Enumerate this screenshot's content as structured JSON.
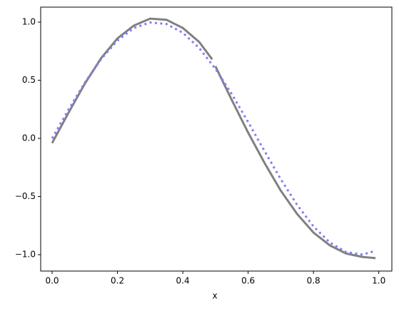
{
  "chart_data": {
    "type": "line",
    "x_label": "x",
    "xlim": [
      -0.035,
      1.04
    ],
    "ylim": [
      -1.141,
      1.129
    ],
    "xticks": [
      {
        "value": 0,
        "label": "0.0"
      },
      0.2,
      0.4,
      0.6,
      0.8,
      {
        "value": 1,
        "label": "1.0"
      }
    ],
    "yticks": [
      {
        "value": -1,
        "label": "−1.0"
      },
      {
        "value": -0.5,
        "label": "−0.5"
      },
      {
        "value": 0,
        "label": "0.0"
      },
      0.5,
      {
        "value": 1,
        "label": "1.0"
      }
    ],
    "series": [
      {
        "color": "#808080",
        "style": "solid",
        "x": [
          0,
          0.05,
          0.1,
          0.15,
          0.2,
          0.25,
          0.3,
          0.35,
          0.4,
          0.45,
          0.49
        ],
        "values": [
          -0.04,
          0.22,
          0.47,
          0.69,
          0.86,
          0.97,
          1.03,
          1.02,
          0.95,
          0.83,
          0.68
        ]
      },
      {
        "color": "#808080",
        "style": "solid",
        "x": [
          0.5,
          0.55,
          0.6,
          0.65,
          0.7,
          0.75,
          0.8,
          0.85,
          0.9,
          0.95,
          0.99
        ],
        "values": [
          0.62,
          0.33,
          0.05,
          -0.21,
          -0.45,
          -0.65,
          -0.81,
          -0.92,
          -0.99,
          -1.02,
          -1.03
        ]
      },
      {
        "color": "#7f7ff5",
        "style": "dotted",
        "x": [
          0,
          0.05,
          0.1,
          0.15,
          0.2,
          0.25,
          0.3,
          0.35,
          0.4,
          0.45,
          0.5,
          0.55,
          0.6,
          0.65,
          0.7,
          0.75,
          0.8,
          0.85,
          0.9,
          0.95,
          0.99
        ],
        "values": [
          0.0,
          0.247,
          0.479,
          0.682,
          0.841,
          0.949,
          0.997,
          0.984,
          0.909,
          0.778,
          0.598,
          0.381,
          0.141,
          -0.108,
          -0.351,
          -0.572,
          -0.757,
          -0.895,
          -0.978,
          -0.999,
          -0.967
        ]
      }
    ]
  }
}
